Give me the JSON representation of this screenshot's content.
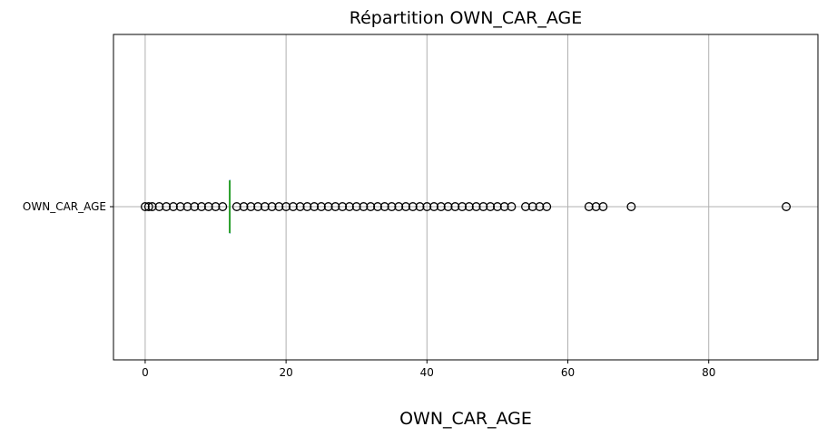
{
  "chart_data": {
    "type": "boxplot",
    "orientation": "horizontal",
    "title": "Répartition OWN_CAR_AGE",
    "xlabel": "OWN_CAR_AGE",
    "ylabel": "",
    "categories": [
      "OWN_CAR_AGE"
    ],
    "xlim": [
      -4.5,
      95.5
    ],
    "x_ticks": [
      0,
      20,
      40,
      60,
      80
    ],
    "grid": true,
    "box": {
      "min": 12,
      "q1": 12,
      "median": 12,
      "q3": 12,
      "max": 12
    },
    "outliers": [
      0,
      0.5,
      1,
      2,
      3,
      4,
      5,
      6,
      7,
      8,
      9,
      10,
      11,
      13,
      14,
      15,
      16,
      17,
      18,
      19,
      20,
      21,
      22,
      23,
      24,
      25,
      26,
      27,
      28,
      29,
      30,
      31,
      32,
      33,
      34,
      35,
      36,
      37,
      38,
      39,
      40,
      41,
      42,
      43,
      44,
      45,
      46,
      47,
      48,
      49,
      50,
      51,
      52,
      54,
      55,
      56,
      57,
      63,
      64,
      65,
      69,
      91
    ],
    "colors": {
      "outlier_edge": "#000000",
      "median": "#2ca02c",
      "grid": "#b0b0b0",
      "box": "#1f77b4"
    }
  }
}
